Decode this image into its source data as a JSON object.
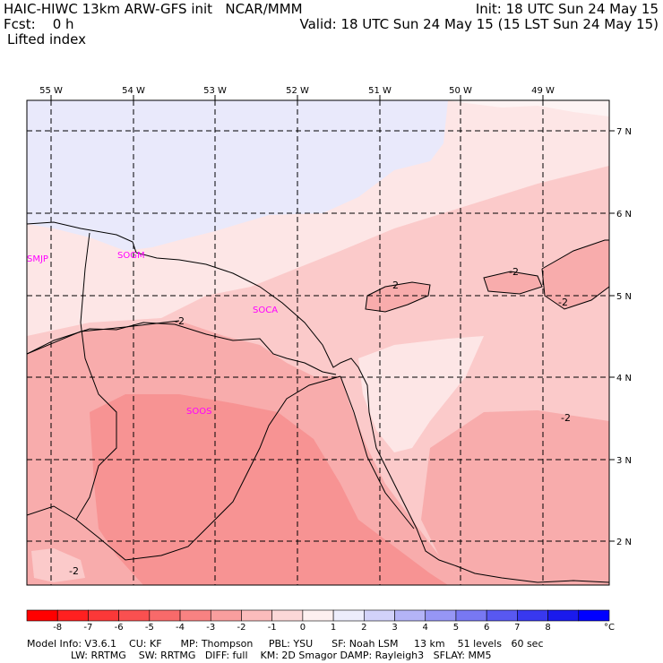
{
  "header": {
    "model_title": "HAIC-HIWC 13km ARW-GFS init   NCAR/MMM",
    "forecast": "Fcst:    0 h",
    "field": "Lifted index",
    "init": "Init: 18 UTC Sun 24 May 15",
    "valid": "Valid: 18 UTC Sun 24 May 15 (15 LST Sun 24 May 15)"
  },
  "map": {
    "lon_labels": [
      "55 W",
      "54 W",
      "53 W",
      "52 W",
      "51 W",
      "50 W",
      "49 W"
    ],
    "lat_labels": [
      "7 N",
      "6 N",
      "5 N",
      "4 N",
      "3 N",
      "2 N"
    ],
    "stations": [
      "SMJP",
      "SOGM",
      "SOCA",
      "SOOS"
    ],
    "contour_label": "-2",
    "colors": {
      "lightest_blue": "#e9e9fb",
      "pale_pink": "#fde6e6",
      "light_pink": "#fbcaca",
      "mid_pink": "#f8acac",
      "deep_pink": "#f79393",
      "station_label": "#ff00ff"
    }
  },
  "colorbar": {
    "ticks": [
      "-8",
      "-7",
      "-6",
      "-5",
      "-4",
      "-3",
      "-2",
      "-1",
      "0",
      "1",
      "2",
      "3",
      "4",
      "5",
      "6",
      "7",
      "8"
    ],
    "unit": "°C",
    "colors": [
      "#ff0000",
      "#ff2020",
      "#fb3838",
      "#fa5050",
      "#f86a6a",
      "#f88282",
      "#f99e9e",
      "#fbbcbc",
      "#fcd8d8",
      "#fdf0f0",
      "#ededfc",
      "#d2d2fa",
      "#b4b4f7",
      "#9696f5",
      "#7878f3",
      "#5858f1",
      "#3838ef",
      "#1a1aed",
      "#0000ff"
    ]
  },
  "footer": {
    "line1": "Model Info: V3.6.1    CU: KF      MP: Thompson     PBL: YSU      SF: Noah LSM     13 km    51 levels   60 sec",
    "line2": "              LW: RRTMG    SW: RRTMG   DIFF: full    KM: 2D Smagor DAMP: Rayleigh3   SFLAY: MM5"
  }
}
